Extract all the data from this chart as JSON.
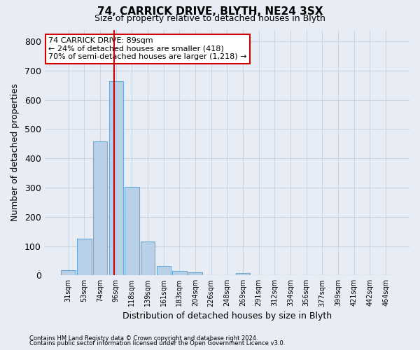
{
  "title1": "74, CARRICK DRIVE, BLYTH, NE24 3SX",
  "title2": "Size of property relative to detached houses in Blyth",
  "xlabel": "Distribution of detached houses by size in Blyth",
  "ylabel": "Number of detached properties",
  "categories": [
    "31sqm",
    "53sqm",
    "74sqm",
    "96sqm",
    "118sqm",
    "139sqm",
    "161sqm",
    "183sqm",
    "204sqm",
    "226sqm",
    "248sqm",
    "269sqm",
    "291sqm",
    "312sqm",
    "334sqm",
    "356sqm",
    "377sqm",
    "399sqm",
    "421sqm",
    "442sqm",
    "464sqm"
  ],
  "values": [
    17,
    126,
    458,
    665,
    302,
    115,
    32,
    14,
    10,
    0,
    0,
    8,
    0,
    0,
    0,
    0,
    0,
    0,
    0,
    0,
    0
  ],
  "bar_color": "#b8d0e8",
  "bar_edge_color": "#6aaad4",
  "vline_color": "#cc0000",
  "annotation_line1": "74 CARRICK DRIVE: 89sqm",
  "annotation_line2": "← 24% of detached houses are smaller (418)",
  "annotation_line3": "70% of semi-detached houses are larger (1,218) →",
  "annotation_box_facecolor": "#ffffff",
  "annotation_box_edgecolor": "#cc0000",
  "ylim": [
    0,
    840
  ],
  "yticks": [
    0,
    100,
    200,
    300,
    400,
    500,
    600,
    700,
    800
  ],
  "grid_color": "#c8d4e4",
  "bg_color": "#e8edf5",
  "footer1": "Contains HM Land Registry data © Crown copyright and database right 2024.",
  "footer2": "Contains public sector information licensed under the Open Government Licence v3.0.",
  "title1_fontsize": 11,
  "title2_fontsize": 9,
  "xlabel_fontsize": 9,
  "ylabel_fontsize": 9,
  "xtick_fontsize": 7,
  "ytick_fontsize": 9,
  "footer_fontsize": 6,
  "annot_fontsize": 8,
  "vline_x_index": 2.87
}
